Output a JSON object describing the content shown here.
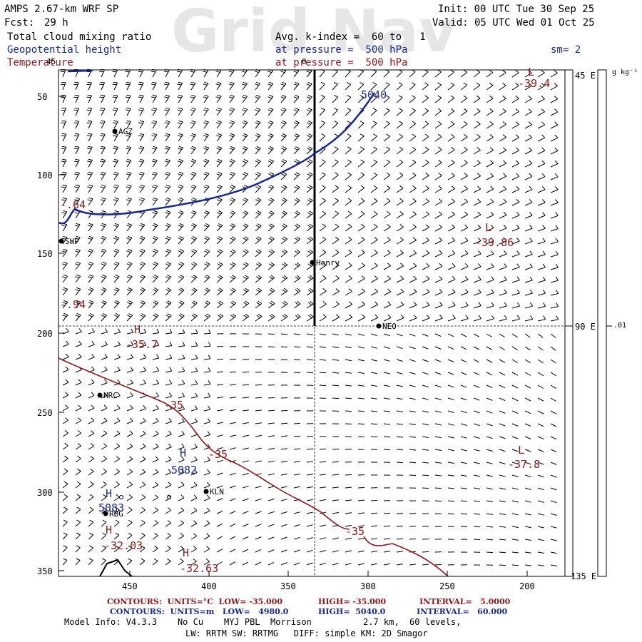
{
  "header": {
    "model": "AMPS 2.67-km WRF SP",
    "init": "Init: 00 UTC Tue 30 Sep 25",
    "fcst_label": "Fcst:",
    "fcst_value": "29 h",
    "valid": "Valid: 05 UTC Wed 01 Oct 25",
    "field1": "Total cloud mixing ratio",
    "field2": "Geopotential height",
    "field3": "Temperature",
    "avg": "Avg. k-index =  60 to   1",
    "pressure1": "at pressure =  500 hPa",
    "pressure2": "at pressure =  500 hPa",
    "smooth": "sm= 2",
    "watermark": "Grid Nav"
  },
  "axes": {
    "y_ticks": [
      "50",
      "100",
      "150",
      "200",
      "250",
      "300",
      "350"
    ],
    "x_ticks": [
      "450",
      "400",
      "350",
      "300",
      "250",
      "200"
    ],
    "right_labels": [
      "45 E",
      "90 E",
      "135 E"
    ],
    "colorbar_unit": "g kg⁻¹",
    "colorbar_value": ".01"
  },
  "stations": [
    {
      "name": "AGZ"
    },
    {
      "name": "SWP"
    },
    {
      "name": "Henry"
    },
    {
      "name": "NEO"
    },
    {
      "name": "HRC"
    },
    {
      "name": "KLN"
    },
    {
      "name": "RBG"
    }
  ],
  "contour_labels": {
    "height": [
      "5040",
      "5082",
      "5083"
    ],
    "temp": [
      "-35",
      "-35",
      "-35"
    ],
    "extrema": [
      {
        "sym": "L",
        "value": "-39.4"
      },
      {
        "sym": "L",
        "value": "-39.86"
      },
      {
        "sym": "H",
        "value": "-35.7"
      },
      {
        "sym": "L",
        "value": "-37.8"
      },
      {
        "sym": "H",
        "value": "-32.03"
      },
      {
        "sym": "H",
        "value": "-32.63"
      },
      {
        "sym": "",
        "value": "-.64"
      },
      {
        "sym": "",
        "value": "-.94"
      }
    ],
    "height_H": [
      "H",
      "H"
    ],
    "lon_label": "0",
    "lon_label2": "45"
  },
  "footer": {
    "line1_a": "CONTOURS:  UNITS=°C  LOW= -35.000",
    "line1_b": "HIGH= -35.000",
    "line1_c": "INTERVAL=   5.0000",
    "line2_a": "CONTOURS:  UNITS=m   LOW=   4980.0",
    "line2_b": "HIGH=  5040.0",
    "line2_c": "INTERVAL=   60.000",
    "model_info": "Model Info: V4.3.3    No Cu    MYJ PBL  Morrison          2.7 km,  60 levels,",
    "model_info2": "LW: RRTM SW: RRTMG   DIFF: simple KM: 2D Smagor"
  },
  "colors": {
    "height": "#1a2a8a",
    "temp": "#8b1a1a"
  }
}
